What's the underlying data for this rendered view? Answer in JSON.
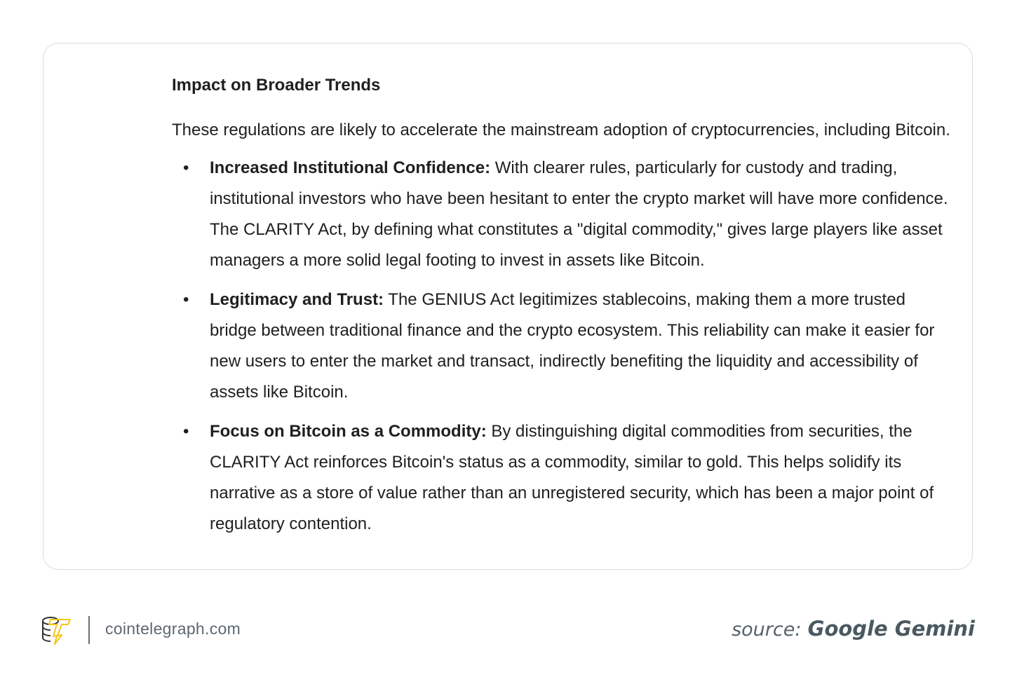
{
  "card": {
    "heading": "Impact on Broader Trends",
    "intro": "These regulations are likely to accelerate the mainstream adoption of cryptocurrencies, including Bitcoin.",
    "bullets": [
      {
        "title": "Increased Institutional Confidence:",
        "text": " With clearer rules, particularly for custody and trading, institutional investors who have been hesitant to enter the crypto market will have more confidence. The CLARITY Act, by defining what constitutes a \"digital commodity,\" gives large players like asset managers a more solid legal footing to invest in assets like Bitcoin."
      },
      {
        "title": "Legitimacy and Trust:",
        "text": " The GENIUS Act legitimizes stablecoins, making them a more trusted bridge between traditional finance and the crypto ecosystem. This reliability can make it easier for new users to enter the market and transact, indirectly benefiting the liquidity and accessibility of assets like Bitcoin."
      },
      {
        "title": "Focus on Bitcoin as a Commodity:",
        "text": " By distinguishing digital commodities from securities, the CLARITY Act reinforces Bitcoin's status as a commodity, similar to gold. This helps solidify its narrative as a store of value rather than an unregistered security, which has been a major point of regulatory contention."
      }
    ],
    "bullet_glyph": "•"
  },
  "footer": {
    "logo_icon": "cointelegraph-logo-icon",
    "site": "cointelegraph.com",
    "source_label": "source:",
    "source_name": "Google Gemini",
    "accent": "#f5c518"
  }
}
